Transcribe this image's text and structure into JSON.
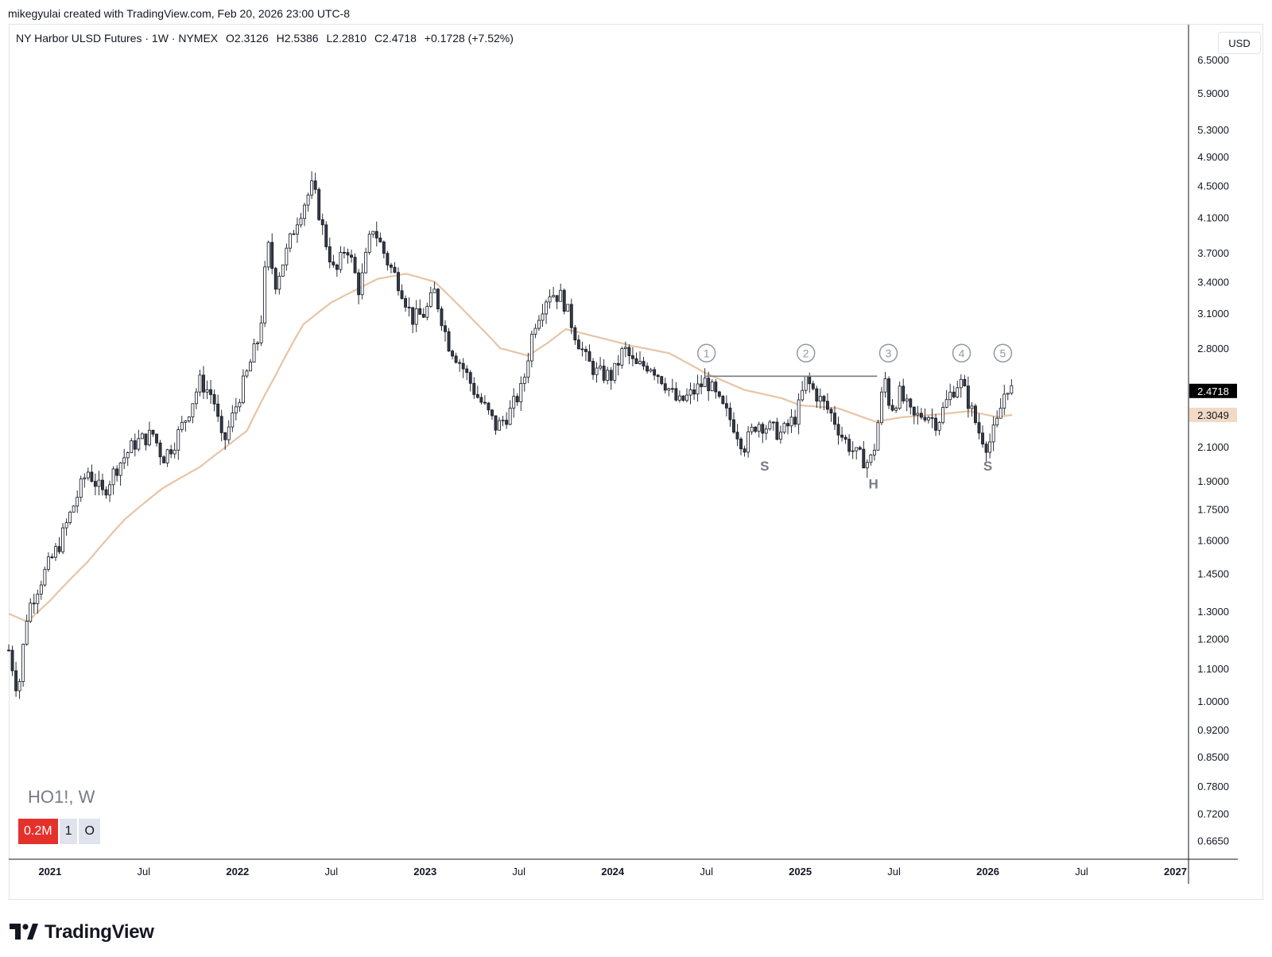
{
  "credit": "mikegyulai created with TradingView.com, Feb 20, 2026 23:00 UTC-8",
  "legend": {
    "symbol": "NY Harbor ULSD Futures · 1W · NYMEX",
    "open": "O2.3126",
    "high": "H2.5386",
    "low": "L2.2810",
    "close": "C2.4718",
    "change": "+0.1728 (+7.52%)"
  },
  "currency": "USD",
  "watermark": "HO1!, W",
  "indicator": {
    "volume": "0.2M",
    "badge1": "1",
    "badge2": "O"
  },
  "brand": "TradingView",
  "colors": {
    "up_candle": "#ffffff",
    "down_candle": "#363a45",
    "wick": "#131722",
    "moving_average": "#e8c4a6",
    "resistance_line": "#787b86",
    "last_price_bg": "#000000",
    "ma_price_bg": "#f2d9c5",
    "volume_badge": "#e5312b"
  },
  "chart_data": {
    "type": "candlestick",
    "scale": "log",
    "ylim": [
      0.63,
      7.2
    ],
    "y_ticks": [
      "6.5000",
      "5.9000",
      "5.3000",
      "4.9000",
      "4.5000",
      "4.1000",
      "3.7000",
      "3.4000",
      "3.1000",
      "2.8000",
      "2.1000",
      "1.9000",
      "1.7500",
      "1.6000",
      "1.4500",
      "1.3000",
      "1.2000",
      "1.1000",
      "1.0000",
      "0.9200",
      "0.8500",
      "0.7800",
      "0.7200",
      "0.6650"
    ],
    "x_ticks": [
      {
        "label": "2021",
        "t": 2021.0,
        "bold": true
      },
      {
        "label": "Jul",
        "t": 2021.5,
        "bold": false
      },
      {
        "label": "2022",
        "t": 2022.0,
        "bold": true
      },
      {
        "label": "Jul",
        "t": 2022.5,
        "bold": false
      },
      {
        "label": "2023",
        "t": 2023.0,
        "bold": true
      },
      {
        "label": "Jul",
        "t": 2023.5,
        "bold": false
      },
      {
        "label": "2024",
        "t": 2024.0,
        "bold": true
      },
      {
        "label": "Jul",
        "t": 2024.5,
        "bold": false
      },
      {
        "label": "2025",
        "t": 2025.0,
        "bold": true
      },
      {
        "label": "Jul",
        "t": 2025.5,
        "bold": false
      },
      {
        "label": "2026",
        "t": 2026.0,
        "bold": true
      },
      {
        "label": "Jul",
        "t": 2026.5,
        "bold": false
      },
      {
        "label": "2027",
        "t": 2027.0,
        "bold": true
      }
    ],
    "x_range": [
      2020.78,
      2027.07
    ],
    "last_price": "2.4718",
    "ma_price": "2.3049",
    "anchors": [
      [
        2020.78,
        1.16
      ],
      [
        2020.83,
        1.02
      ],
      [
        2020.88,
        1.3
      ],
      [
        2020.95,
        1.42
      ],
      [
        2021.05,
        1.58
      ],
      [
        2021.13,
        1.78
      ],
      [
        2021.2,
        1.96
      ],
      [
        2021.28,
        1.83
      ],
      [
        2021.35,
        1.97
      ],
      [
        2021.45,
        2.12
      ],
      [
        2021.55,
        2.18
      ],
      [
        2021.6,
        2.03
      ],
      [
        2021.66,
        2.12
      ],
      [
        2021.73,
        2.3
      ],
      [
        2021.8,
        2.54
      ],
      [
        2021.87,
        2.43
      ],
      [
        2021.92,
        2.1
      ],
      [
        2021.97,
        2.28
      ],
      [
        2022.05,
        2.6
      ],
      [
        2022.12,
        2.92
      ],
      [
        2022.16,
        3.8
      ],
      [
        2022.2,
        3.38
      ],
      [
        2022.26,
        3.7
      ],
      [
        2022.32,
        4.1
      ],
      [
        2022.4,
        4.5
      ],
      [
        2022.46,
        3.9
      ],
      [
        2022.52,
        3.45
      ],
      [
        2022.58,
        3.8
      ],
      [
        2022.65,
        3.3
      ],
      [
        2022.72,
        4.0
      ],
      [
        2022.8,
        3.6
      ],
      [
        2022.87,
        3.35
      ],
      [
        2022.93,
        3.05
      ],
      [
        2023.0,
        3.1
      ],
      [
        2023.05,
        3.3
      ],
      [
        2023.12,
        2.85
      ],
      [
        2023.2,
        2.65
      ],
      [
        2023.27,
        2.45
      ],
      [
        2023.32,
        2.35
      ],
      [
        2023.38,
        2.22
      ],
      [
        2023.45,
        2.32
      ],
      [
        2023.52,
        2.5
      ],
      [
        2023.58,
        3.0
      ],
      [
        2023.66,
        3.3
      ],
      [
        2023.73,
        3.25
      ],
      [
        2023.8,
        2.92
      ],
      [
        2023.86,
        2.7
      ],
      [
        2023.92,
        2.6
      ],
      [
        2024.0,
        2.58
      ],
      [
        2024.06,
        2.8
      ],
      [
        2024.12,
        2.65
      ],
      [
        2024.2,
        2.67
      ],
      [
        2024.27,
        2.55
      ],
      [
        2024.35,
        2.38
      ],
      [
        2024.42,
        2.45
      ],
      [
        2024.5,
        2.55
      ],
      [
        2024.57,
        2.38
      ],
      [
        2024.64,
        2.25
      ],
      [
        2024.7,
        2.1
      ],
      [
        2024.77,
        2.26
      ],
      [
        2024.83,
        2.22
      ],
      [
        2024.9,
        2.18
      ],
      [
        2024.98,
        2.3
      ],
      [
        2025.03,
        2.55
      ],
      [
        2025.1,
        2.42
      ],
      [
        2025.17,
        2.3
      ],
      [
        2025.23,
        2.15
      ],
      [
        2025.3,
        2.05
      ],
      [
        2025.37,
        2.0
      ],
      [
        2025.4,
        2.12
      ],
      [
        2025.45,
        2.58
      ],
      [
        2025.48,
        2.34
      ],
      [
        2025.53,
        2.45
      ],
      [
        2025.6,
        2.28
      ],
      [
        2025.67,
        2.32
      ],
      [
        2025.73,
        2.25
      ],
      [
        2025.8,
        2.45
      ],
      [
        2025.85,
        2.55
      ],
      [
        2025.9,
        2.38
      ],
      [
        2025.95,
        2.2
      ],
      [
        2026.0,
        2.1
      ],
      [
        2026.05,
        2.25
      ],
      [
        2026.1,
        2.52
      ],
      [
        2026.13,
        2.47
      ]
    ],
    "ma_anchors": [
      [
        2020.78,
        1.29
      ],
      [
        2020.88,
        1.26
      ],
      [
        2021.0,
        1.34
      ],
      [
        2021.2,
        1.5
      ],
      [
        2021.4,
        1.7
      ],
      [
        2021.6,
        1.86
      ],
      [
        2021.8,
        1.98
      ],
      [
        2021.95,
        2.11
      ],
      [
        2022.05,
        2.2
      ],
      [
        2022.2,
        2.58
      ],
      [
        2022.35,
        3.0
      ],
      [
        2022.5,
        3.2
      ],
      [
        2022.75,
        3.43
      ],
      [
        2022.9,
        3.48
      ],
      [
        2023.05,
        3.4
      ],
      [
        2023.25,
        3.05
      ],
      [
        2023.4,
        2.8
      ],
      [
        2023.55,
        2.74
      ],
      [
        2023.65,
        2.84
      ],
      [
        2023.75,
        2.96
      ],
      [
        2023.9,
        2.9
      ],
      [
        2024.1,
        2.82
      ],
      [
        2024.3,
        2.76
      ],
      [
        2024.5,
        2.6
      ],
      [
        2024.7,
        2.48
      ],
      [
        2024.9,
        2.42
      ],
      [
        2025.0,
        2.37
      ],
      [
        2025.2,
        2.35
      ],
      [
        2025.4,
        2.26
      ],
      [
        2025.55,
        2.29
      ],
      [
        2025.75,
        2.31
      ],
      [
        2025.9,
        2.33
      ],
      [
        2026.05,
        2.29
      ],
      [
        2026.13,
        2.305
      ]
    ],
    "resistance": {
      "y": 2.58,
      "x_start": 2024.49,
      "x_end": 2025.41
    },
    "markers": [
      {
        "label": "1",
        "x": 2024.5,
        "y": 2.76
      },
      {
        "label": "2",
        "x": 2025.03,
        "y": 2.76
      },
      {
        "label": "3",
        "x": 2025.47,
        "y": 2.76
      },
      {
        "label": "4",
        "x": 2025.86,
        "y": 2.76
      },
      {
        "label": "5",
        "x": 2026.08,
        "y": 2.76
      }
    ],
    "pattern_labels": [
      {
        "label": "S",
        "x": 2024.81,
        "y": 1.96
      },
      {
        "label": "H",
        "x": 2025.39,
        "y": 1.86
      },
      {
        "label": "S",
        "x": 2026.0,
        "y": 1.96
      }
    ]
  }
}
